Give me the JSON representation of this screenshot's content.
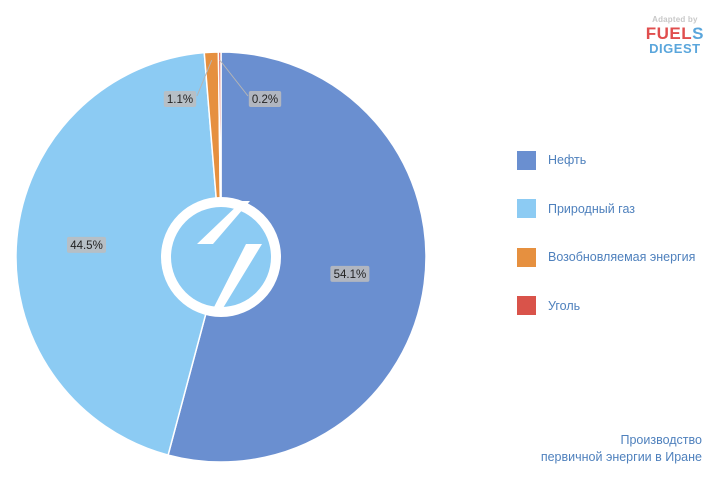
{
  "chart_data": {
    "type": "pie",
    "slices": [
      {
        "label": "Нефть",
        "value": 54.1,
        "display": "54.1%",
        "color": "#6a8fd0"
      },
      {
        "label": "Природный газ",
        "value": 44.5,
        "display": "44.5%",
        "color": "#8ccbf3"
      },
      {
        "label": "Возобновляемая энергия",
        "value": 1.1,
        "display": "1.1%",
        "color": "#e6903f"
      },
      {
        "label": "Уголь",
        "value": 0.2,
        "display": "0.2%",
        "color": "#d9534a"
      }
    ],
    "legend_position": "right",
    "caption": [
      "Производство",
      "первичной энергии в Иране"
    ]
  },
  "legend": {
    "items": [
      {
        "label": "Нефть",
        "color": "#6a8fd0"
      },
      {
        "label": "Природный газ",
        "color": "#8ccbf3"
      },
      {
        "label": "Возобновляемая энергия",
        "color": "#e6903f"
      },
      {
        "label": "Уголь",
        "color": "#d9534a"
      }
    ]
  },
  "logo": {
    "adapted": "Adapted by",
    "word1": "FUEL",
    "word1_s": "S",
    "word2": "DIGEST"
  },
  "caption": {
    "line1": "Производство",
    "line2": "первичной энергии в Иране"
  },
  "center_logo_icon": "bolt-logo-icon"
}
